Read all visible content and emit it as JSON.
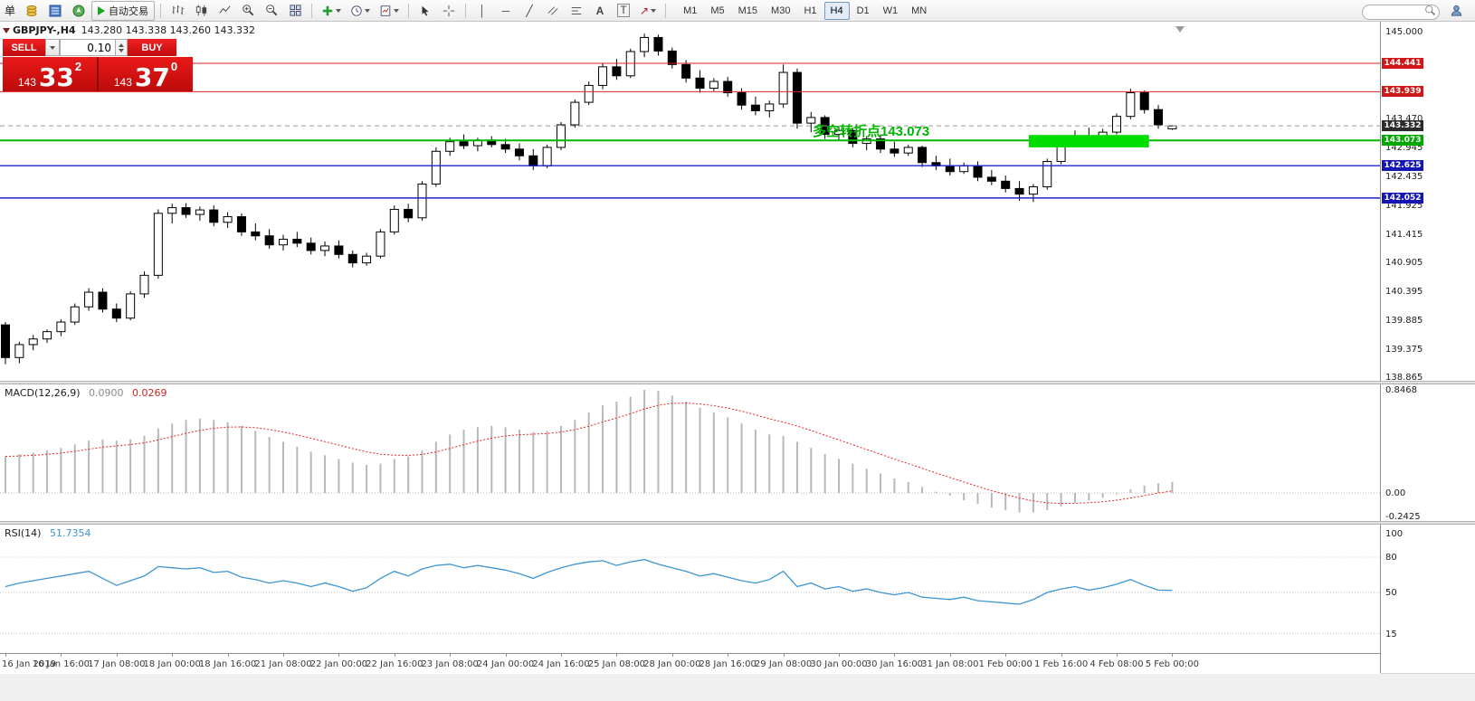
{
  "toolbar": {
    "menu_text": "单",
    "autotrading": "自动交易",
    "timeframes": [
      "M1",
      "M5",
      "M15",
      "M30",
      "H1",
      "H4",
      "D1",
      "W1",
      "MN"
    ],
    "active_timeframe": "H4",
    "glyphs": {
      "vline": "│",
      "hline": "─",
      "trendline": "╱",
      "text_tool": "A",
      "label_tool": "T",
      "arrow_tool": "↗"
    }
  },
  "trade_panel": {
    "sell_label": "SELL",
    "buy_label": "BUY",
    "volume": "0.10",
    "sell_small": "143",
    "sell_big": "33",
    "sell_sup": "2",
    "buy_small": "143",
    "buy_big": "37",
    "buy_sup": "0"
  },
  "chart_data": {
    "type": "candlestick",
    "symbol": "GBPJPY-",
    "timeframe": "H4",
    "quote": {
      "symbol": "GBPJPY-,H4",
      "ohlc": "143.280 143.338 143.260 143.332"
    },
    "annotation": {
      "text": "多空转折点143.073",
      "color": "#00b400"
    },
    "price_axis_ticks": [
      "145.000",
      "143.470",
      "142.945",
      "142.435",
      "141.925",
      "141.415",
      "140.905",
      "140.395",
      "139.885",
      "139.375",
      "138.865"
    ],
    "levels": [
      {
        "value": 144.441,
        "label": "144.441",
        "color": "#dd2222",
        "badge": "#d01818",
        "style": "solid",
        "weight": 1
      },
      {
        "value": 143.939,
        "label": "143.939",
        "color": "#dd2222",
        "badge": "#d01818",
        "style": "solid",
        "weight": 1
      },
      {
        "value": 143.332,
        "label": "143.332",
        "color": "#9a9a9a",
        "badge": "#2b2b2b",
        "style": "dash",
        "weight": 1
      },
      {
        "value": 143.073,
        "label": "143.073",
        "color": "#00bb00",
        "badge": "#00a800",
        "style": "solid",
        "weight": 2
      },
      {
        "value": 142.625,
        "label": "142.625",
        "color": "#2222cc",
        "badge": "#1515b4",
        "style": "solid",
        "weight": 1.4
      },
      {
        "value": 142.052,
        "label": "142.052",
        "color": "#2222cc",
        "badge": "#1515b4",
        "style": "solid",
        "weight": 1.4
      }
    ],
    "highlight_zone": {
      "start_index": 74,
      "end_index": 82,
      "price_top": 143.17,
      "price_bottom": 142.95,
      "color": "#00dd00"
    },
    "candles": [
      [
        139.8,
        139.85,
        139.1,
        139.22
      ],
      [
        139.22,
        139.5,
        139.12,
        139.45
      ],
      [
        139.45,
        139.62,
        139.35,
        139.55
      ],
      [
        139.55,
        139.72,
        139.48,
        139.68
      ],
      [
        139.68,
        139.9,
        139.6,
        139.85
      ],
      [
        139.85,
        140.18,
        139.8,
        140.12
      ],
      [
        140.12,
        140.45,
        140.05,
        140.38
      ],
      [
        140.38,
        140.45,
        140.02,
        140.08
      ],
      [
        140.08,
        140.18,
        139.85,
        139.92
      ],
      [
        139.92,
        140.4,
        139.88,
        140.35
      ],
      [
        140.35,
        140.75,
        140.28,
        140.68
      ],
      [
        140.68,
        141.85,
        140.62,
        141.78
      ],
      [
        141.78,
        141.95,
        141.6,
        141.88
      ],
      [
        141.88,
        141.96,
        141.7,
        141.76
      ],
      [
        141.76,
        141.9,
        141.65,
        141.84
      ],
      [
        141.84,
        141.92,
        141.55,
        141.62
      ],
      [
        141.62,
        141.8,
        141.52,
        141.72
      ],
      [
        141.72,
        141.78,
        141.38,
        141.45
      ],
      [
        141.45,
        141.6,
        141.3,
        141.38
      ],
      [
        141.38,
        141.5,
        141.15,
        141.22
      ],
      [
        141.22,
        141.4,
        141.12,
        141.32
      ],
      [
        141.32,
        141.45,
        141.18,
        141.25
      ],
      [
        141.25,
        141.35,
        141.05,
        141.12
      ],
      [
        141.12,
        141.28,
        141.02,
        141.2
      ],
      [
        141.2,
        141.3,
        140.98,
        141.05
      ],
      [
        141.05,
        141.12,
        140.82,
        140.9
      ],
      [
        140.9,
        141.08,
        140.85,
        141.02
      ],
      [
        141.02,
        141.5,
        140.98,
        141.45
      ],
      [
        141.45,
        141.92,
        141.4,
        141.85
      ],
      [
        141.85,
        141.95,
        141.62,
        141.7
      ],
      [
        141.7,
        142.35,
        141.65,
        142.3
      ],
      [
        142.3,
        142.95,
        142.25,
        142.88
      ],
      [
        142.88,
        143.12,
        142.8,
        143.05
      ],
      [
        143.05,
        143.18,
        142.92,
        142.98
      ],
      [
        142.98,
        143.12,
        142.88,
        143.08
      ],
      [
        143.08,
        143.15,
        142.95,
        143.0
      ],
      [
        143.0,
        143.1,
        142.85,
        142.92
      ],
      [
        142.92,
        143.02,
        142.72,
        142.8
      ],
      [
        142.8,
        142.92,
        142.55,
        142.62
      ],
      [
        142.62,
        143.0,
        142.58,
        142.95
      ],
      [
        142.95,
        143.4,
        142.9,
        143.35
      ],
      [
        143.35,
        143.8,
        143.3,
        143.75
      ],
      [
        143.75,
        144.12,
        143.7,
        144.05
      ],
      [
        144.05,
        144.45,
        143.98,
        144.38
      ],
      [
        144.38,
        144.52,
        144.15,
        144.22
      ],
      [
        144.22,
        144.7,
        144.18,
        144.65
      ],
      [
        144.65,
        144.97,
        144.55,
        144.9
      ],
      [
        144.9,
        144.95,
        144.58,
        144.66
      ],
      [
        144.66,
        144.72,
        144.35,
        144.42
      ],
      [
        144.42,
        144.5,
        144.1,
        144.18
      ],
      [
        144.18,
        144.32,
        143.92,
        144.0
      ],
      [
        144.0,
        144.18,
        143.95,
        144.12
      ],
      [
        144.12,
        144.2,
        143.85,
        143.92
      ],
      [
        143.92,
        144.0,
        143.62,
        143.7
      ],
      [
        143.7,
        143.85,
        143.52,
        143.6
      ],
      [
        143.6,
        143.78,
        143.48,
        143.72
      ],
      [
        143.72,
        144.42,
        143.65,
        144.28
      ],
      [
        144.28,
        144.35,
        143.28,
        143.38
      ],
      [
        143.38,
        143.58,
        143.22,
        143.48
      ],
      [
        143.48,
        143.52,
        143.1,
        143.18
      ],
      [
        143.18,
        143.32,
        143.08,
        143.25
      ],
      [
        143.25,
        143.3,
        142.95,
        143.02
      ],
      [
        143.02,
        143.15,
        142.9,
        143.1
      ],
      [
        143.1,
        143.18,
        142.85,
        142.92
      ],
      [
        142.92,
        143.05,
        142.78,
        142.85
      ],
      [
        142.85,
        143.0,
        142.8,
        142.95
      ],
      [
        142.95,
        142.98,
        142.6,
        142.68
      ],
      [
        142.68,
        142.8,
        142.55,
        142.62
      ],
      [
        142.62,
        142.75,
        142.45,
        142.52
      ],
      [
        142.52,
        142.68,
        142.48,
        142.62
      ],
      [
        142.62,
        142.7,
        142.35,
        142.42
      ],
      [
        142.42,
        142.55,
        142.28,
        142.35
      ],
      [
        142.35,
        142.45,
        142.15,
        142.22
      ],
      [
        142.22,
        142.35,
        142.0,
        142.12
      ],
      [
        142.12,
        142.3,
        141.98,
        142.25
      ],
      [
        142.25,
        142.75,
        142.2,
        142.7
      ],
      [
        142.7,
        143.1,
        142.65,
        143.05
      ],
      [
        143.05,
        143.25,
        142.95,
        143.15
      ],
      [
        143.15,
        143.3,
        143.05,
        143.1
      ],
      [
        143.1,
        143.28,
        143.02,
        143.22
      ],
      [
        143.22,
        143.55,
        143.18,
        143.5
      ],
      [
        143.5,
        143.99,
        143.45,
        143.92
      ],
      [
        143.92,
        143.96,
        143.55,
        143.62
      ],
      [
        143.62,
        143.7,
        143.28,
        143.35
      ],
      [
        143.28,
        143.338,
        143.26,
        143.332
      ]
    ],
    "time_labels": [
      "16 Jan 2019",
      "16 Jan 16:00",
      "17 Jan 08:00",
      "18 Jan 00:00",
      "18 Jan 16:00",
      "21 Jan 08:00",
      "22 Jan 00:00",
      "22 Jan 16:00",
      "23 Jan 08:00",
      "24 Jan 00:00",
      "24 Jan 16:00",
      "25 Jan 08:00",
      "28 Jan 00:00",
      "28 Jan 16:00",
      "29 Jan 08:00",
      "30 Jan 00:00",
      "30 Jan 16:00",
      "31 Jan 08:00",
      "1 Feb 00:00",
      "1 Feb 16:00",
      "4 Feb 08:00",
      "5 Feb 00:00"
    ],
    "macd": {
      "label": "MACD(12,26,9)",
      "value_main": "0.0900",
      "value_signal": "0.0269",
      "axis": [
        {
          "text": "0.8468",
          "value": 0.8468
        },
        {
          "text": "0.00",
          "value": 0.0
        },
        {
          "text": "-0.2425",
          "value": -0.2425
        }
      ],
      "bar_color": "#b8b8b8",
      "signal_color": "#ee2222",
      "histogram": [
        0.3,
        0.32,
        0.33,
        0.35,
        0.37,
        0.4,
        0.43,
        0.44,
        0.43,
        0.44,
        0.47,
        0.53,
        0.57,
        0.6,
        0.61,
        0.6,
        0.58,
        0.55,
        0.51,
        0.46,
        0.42,
        0.38,
        0.34,
        0.31,
        0.28,
        0.25,
        0.23,
        0.24,
        0.28,
        0.3,
        0.35,
        0.42,
        0.48,
        0.52,
        0.54,
        0.55,
        0.54,
        0.52,
        0.5,
        0.51,
        0.55,
        0.6,
        0.66,
        0.72,
        0.75,
        0.79,
        0.8468,
        0.84,
        0.8,
        0.75,
        0.7,
        0.66,
        0.62,
        0.57,
        0.52,
        0.48,
        0.47,
        0.42,
        0.37,
        0.32,
        0.28,
        0.24,
        0.2,
        0.16,
        0.12,
        0.09,
        0.05,
        0.01,
        -0.02,
        -0.06,
        -0.09,
        -0.12,
        -0.14,
        -0.16,
        -0.16,
        -0.14,
        -0.11,
        -0.08,
        -0.06,
        -0.04,
        -0.01,
        0.03,
        0.06,
        0.08,
        0.09
      ]
    },
    "rsi": {
      "label": "RSI(14)",
      "value_label": "51.7354",
      "axis": [
        {
          "text": "100",
          "value": 100
        },
        {
          "text": "80",
          "value": 80
        },
        {
          "text": "50",
          "value": 50
        },
        {
          "text": "15",
          "value": 15
        }
      ],
      "levels": [
        80,
        50,
        15
      ],
      "line_color": "#3e95d1",
      "values": [
        55,
        58,
        60,
        62,
        64,
        66,
        68,
        62,
        56,
        60,
        64,
        72,
        71,
        70,
        71,
        67,
        68,
        63,
        61,
        58,
        60,
        58,
        55,
        58,
        55,
        51,
        54,
        62,
        68,
        64,
        70,
        73,
        74,
        71,
        73,
        71,
        69,
        66,
        62,
        67,
        71,
        74,
        76,
        77,
        73,
        76,
        78,
        74,
        71,
        68,
        64,
        66,
        63,
        60,
        58,
        61,
        68,
        55,
        58,
        53,
        55,
        51,
        53,
        50,
        48,
        50,
        46,
        45,
        44,
        46,
        43,
        42,
        41,
        40,
        44,
        50,
        53,
        55,
        52,
        54,
        57,
        61,
        56,
        52,
        51.74
      ]
    }
  }
}
